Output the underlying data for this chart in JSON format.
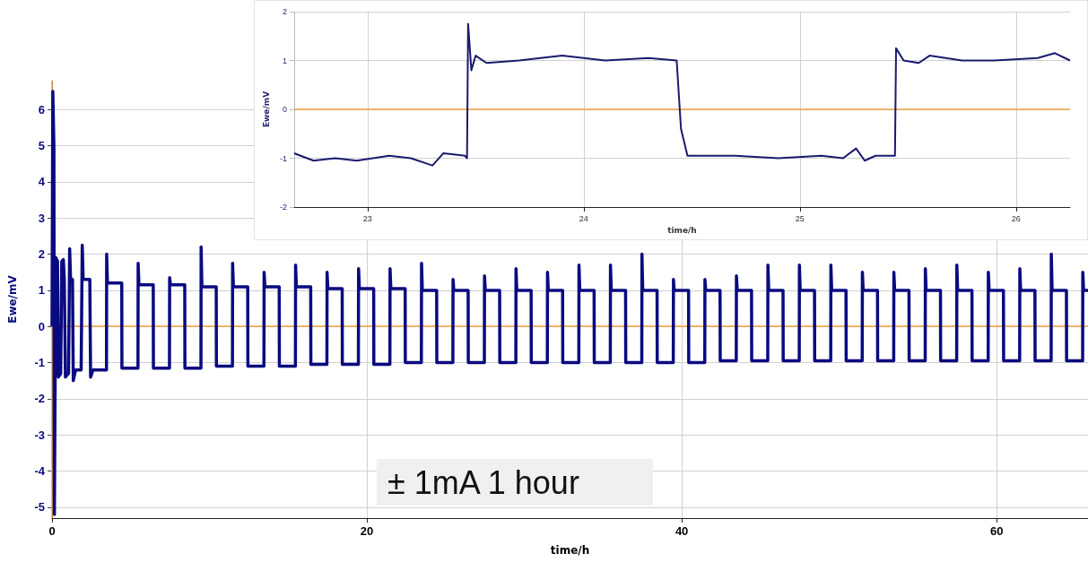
{
  "chart_data": [
    {
      "type": "line",
      "xlabel": "time/h",
      "ylabel": "Ewe/mV",
      "xlim": [
        0,
        65.8
      ],
      "xticks": [
        0,
        20,
        40,
        60
      ],
      "ylim": [
        -5.3,
        6.8
      ],
      "yticks": [
        -5,
        -4,
        -3,
        -2,
        -1,
        0,
        1,
        2,
        3,
        4,
        5,
        6
      ],
      "grid": true,
      "marker": "none",
      "line_style": "solid",
      "ref_lines": [
        {
          "axis": "y",
          "value": 0,
          "color": "#f0a040"
        },
        {
          "axis": "x",
          "value": 0,
          "color": "#f0a040"
        }
      ],
      "annotations": [
        "± 1mA 1 hour"
      ],
      "series": [
        {
          "color": "#0a0a80",
          "x": [
            0,
            0.05,
            0.12,
            0.15,
            0.2,
            0.25,
            0.35,
            0.4,
            0.55,
            0.62,
            0.72,
            0.78,
            0.85,
            1.05,
            1.12,
            1.18,
            1.3,
            1.35,
            1.5,
            1.85,
            1.92,
            1.98,
            2.4,
            2.45,
            2.6,
            3.4,
            3.46,
            3.47,
            3.52,
            4.43,
            4.44,
            5.46,
            5.47,
            5.52,
            6.43,
            6.44,
            7.46,
            7.47,
            7.52,
            8.43,
            8.44,
            9.46,
            9.47,
            9.52,
            10.43,
            10.44,
            11.46,
            11.47,
            11.52,
            12.43,
            12.44,
            13.46,
            13.47,
            13.52,
            14.43,
            14.44,
            15.46,
            15.47,
            15.52,
            16.43,
            16.44,
            17.46,
            17.47,
            17.52,
            18.43,
            18.44,
            19.46,
            19.47,
            19.52,
            20.43,
            20.44,
            21.46,
            21.47,
            21.52,
            22.43,
            22.44,
            23.46,
            23.47,
            23.52,
            24.43,
            24.44,
            25.46,
            25.47,
            25.52,
            26.43,
            26.44,
            27.46,
            27.47,
            27.52,
            28.43,
            28.44,
            29.46,
            29.47,
            29.52,
            30.43,
            30.44,
            31.46,
            31.47,
            31.52,
            32.43,
            32.44,
            33.46,
            33.47,
            33.52,
            34.43,
            34.44,
            35.46,
            35.47,
            35.52,
            36.43,
            36.44,
            37.46,
            37.47,
            37.52,
            38.43,
            38.44,
            39.46,
            39.47,
            39.52,
            40.43,
            40.44,
            41.46,
            41.47,
            41.52,
            42.43,
            42.44,
            43.46,
            43.47,
            43.52,
            44.43,
            44.44,
            45.46,
            45.47,
            45.52,
            46.43,
            46.44,
            47.46,
            47.47,
            47.52,
            48.43,
            48.44,
            49.46,
            49.47,
            49.52,
            50.43,
            50.44,
            51.46,
            51.47,
            51.52,
            52.43,
            52.44,
            53.46,
            53.47,
            53.52,
            54.43,
            54.44,
            55.46,
            55.47,
            55.52,
            56.43,
            56.44,
            57.46,
            57.47,
            57.52,
            58.43,
            58.44,
            59.46,
            59.47,
            59.52,
            60.43,
            60.44,
            61.46,
            61.47,
            61.52,
            62.43,
            62.44,
            63.46,
            63.47,
            63.52,
            64.43,
            64.44,
            65.46,
            65.47,
            65.52,
            65.8
          ],
          "values": [
            0,
            6.5,
            5,
            -5.2,
            -1.4,
            1.9,
            1.8,
            -1.4,
            -1.3,
            1.8,
            1.85,
            1.3,
            -1.4,
            -1.3,
            2.15,
            1.3,
            1.3,
            -1.5,
            -1.2,
            -1.2,
            2.25,
            1.3,
            1.3,
            -1.4,
            -1.2,
            -1.2,
            -1.2,
            2.0,
            1.2,
            1.2,
            -1.15,
            -1.15,
            1.75,
            1.15,
            1.15,
            -1.15,
            -1.15,
            1.35,
            1.15,
            1.15,
            -1.15,
            -1.15,
            2.2,
            1.1,
            1.1,
            -1.1,
            -1.1,
            1.75,
            1.1,
            1.1,
            -1.1,
            -1.1,
            1.5,
            1.1,
            1.1,
            -1.1,
            -1.1,
            1.7,
            1.1,
            1.1,
            -1.05,
            -1.05,
            1.5,
            1.05,
            1.05,
            -1.05,
            -1.05,
            1.6,
            1.05,
            1.05,
            -1.05,
            -1.05,
            1.6,
            1.05,
            1.05,
            -1.0,
            -1.0,
            1.75,
            1.0,
            1.0,
            -1.0,
            -1.0,
            1.3,
            1.0,
            1.0,
            -1.0,
            -1.0,
            1.4,
            1.0,
            1.0,
            -1.0,
            -1.0,
            1.6,
            1.0,
            1.0,
            -1.0,
            -1.0,
            1.5,
            1.0,
            1.0,
            -1.0,
            -1.0,
            1.7,
            1.0,
            1.0,
            -1.0,
            -1.0,
            1.7,
            1.0,
            1.0,
            -1.0,
            -1.0,
            2.0,
            1.0,
            1.0,
            -1.0,
            -1.0,
            1.3,
            1.0,
            1.0,
            -1.0,
            -1.0,
            1.3,
            1.0,
            1.0,
            -0.95,
            -0.95,
            1.4,
            1.0,
            1.0,
            -0.95,
            -0.95,
            1.7,
            1.0,
            1.0,
            -0.95,
            -0.95,
            1.7,
            1.0,
            1.0,
            -0.95,
            -0.95,
            1.7,
            1.0,
            1.0,
            -0.95,
            -0.95,
            1.5,
            1.0,
            1.0,
            -0.95,
            -0.95,
            1.5,
            1.0,
            1.0,
            -0.95,
            -0.95,
            1.6,
            1.0,
            1.0,
            -0.95,
            -0.95,
            1.7,
            1.0,
            1.0,
            -0.95,
            -0.95,
            1.5,
            1.0,
            1.0,
            -0.95,
            -0.95,
            1.6,
            1.0,
            1.0,
            -0.95,
            -0.95,
            2.0,
            1.0,
            1.0,
            -0.95,
            -0.95,
            1.5,
            1.0,
            1.0
          ]
        }
      ]
    },
    {
      "type": "line",
      "xlabel": "time/h",
      "ylabel": "Ewe/mV",
      "xlim": [
        22.66,
        26.25
      ],
      "xticks": [
        23,
        24,
        25,
        26
      ],
      "ylim": [
        -2,
        2
      ],
      "yticks": [
        -2,
        -1,
        0,
        1,
        2
      ],
      "grid": true,
      "marker": "none",
      "line_style": "solid",
      "ref_lines": [
        {
          "axis": "y",
          "value": 0,
          "color": "#f0a040"
        }
      ],
      "series": [
        {
          "color": "#1a1a6e",
          "x": [
            22.66,
            22.75,
            22.85,
            22.95,
            23.1,
            23.2,
            23.3,
            23.35,
            23.45,
            23.46,
            23.465,
            23.48,
            23.5,
            23.55,
            23.7,
            23.9,
            24.1,
            24.3,
            24.43,
            24.45,
            24.48,
            24.7,
            24.9,
            25.1,
            25.2,
            25.26,
            25.3,
            25.35,
            25.44,
            25.445,
            25.48,
            25.55,
            25.6,
            25.75,
            25.9,
            26.1,
            26.18,
            26.25
          ],
          "values": [
            -0.9,
            -1.05,
            -1.0,
            -1.05,
            -0.95,
            -1.0,
            -1.15,
            -0.9,
            -0.95,
            -1.0,
            1.75,
            0.8,
            1.1,
            0.95,
            1.0,
            1.1,
            1.0,
            1.05,
            1.0,
            -0.4,
            -0.95,
            -0.95,
            -1.0,
            -0.95,
            -1.0,
            -0.8,
            -1.05,
            -0.95,
            -0.95,
            1.25,
            1.0,
            0.95,
            1.1,
            1.0,
            1.0,
            1.05,
            1.15,
            1.0
          ]
        }
      ]
    }
  ]
}
